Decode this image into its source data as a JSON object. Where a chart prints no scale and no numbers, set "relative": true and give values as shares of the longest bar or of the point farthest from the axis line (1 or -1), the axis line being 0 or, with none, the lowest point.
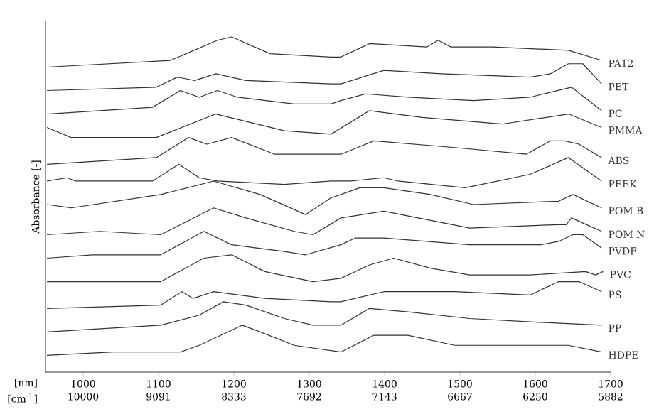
{
  "chart_data": {
    "type": "line",
    "relative": true,
    "marker": "none",
    "xlabel": "[nm]",
    "annotations": [
      "[cm$^{-1}$]",
      "10000",
      "9091",
      "8333",
      "7692",
      "7143",
      "6667",
      "6250",
      "5882"
    ],
    "ylabel": "Absorbance [-]",
    "xlim": [
      950,
      1700
    ],
    "xticks": [
      1000,
      1100,
      1200,
      1300,
      1400,
      1500,
      1600,
      1700
    ],
    "series": [
      {
        "name": "PA12",
        "color": "#333333",
        "x": [
          952,
          1116,
          1178,
          1197,
          1248,
          1329,
          1342,
          1380,
          1456,
          1471,
          1488,
          1544,
          1644,
          1688
        ],
        "values": [
          0.91,
          0.93,
          0.99,
          1.0,
          0.95,
          0.94,
          0.94,
          0.98,
          0.97,
          0.99,
          0.97,
          0.97,
          0.96,
          0.93
        ]
      },
      {
        "name": "PET",
        "color": "#333333",
        "x": [
          952,
          1097,
          1125,
          1148,
          1176,
          1216,
          1329,
          1342,
          1399,
          1475,
          1593,
          1620,
          1644,
          1663,
          1688
        ],
        "values": [
          0.84,
          0.85,
          0.88,
          0.87,
          0.89,
          0.87,
          0.86,
          0.86,
          0.9,
          0.89,
          0.88,
          0.89,
          0.92,
          0.92,
          0.86
        ]
      },
      {
        "name": "PC",
        "color": "#333333",
        "x": [
          952,
          1092,
          1129,
          1154,
          1178,
          1205,
          1280,
          1329,
          1342,
          1375,
          1431,
          1518,
          1593,
          1648,
          1688
        ],
        "values": [
          0.77,
          0.79,
          0.84,
          0.82,
          0.84,
          0.82,
          0.8,
          0.8,
          0.81,
          0.83,
          0.82,
          0.81,
          0.82,
          0.85,
          0.78
        ]
      },
      {
        "name": "PMMA",
        "color": "#333333",
        "x": [
          952,
          984,
          1097,
          1176,
          1267,
          1329,
          1380,
          1450,
          1556,
          1644,
          1688
        ],
        "values": [
          0.73,
          0.7,
          0.7,
          0.77,
          0.72,
          0.71,
          0.78,
          0.76,
          0.74,
          0.77,
          0.73
        ]
      },
      {
        "name": "ABS",
        "color": "#333333",
        "x": [
          952,
          1097,
          1140,
          1164,
          1197,
          1254,
          1329,
          1342,
          1386,
          1493,
          1588,
          1620,
          1639,
          1658,
          1688
        ],
        "values": [
          0.62,
          0.64,
          0.7,
          0.68,
          0.7,
          0.65,
          0.65,
          0.65,
          0.69,
          0.67,
          0.65,
          0.69,
          0.69,
          0.68,
          0.64
        ]
      },
      {
        "name": "PEEK",
        "color": "#333333",
        "x": [
          952,
          979,
          990,
          1092,
          1127,
          1154,
          1178,
          1267,
          1329,
          1355,
          1399,
          1418,
          1507,
          1593,
          1644,
          1688
        ],
        "values": [
          0.57,
          0.58,
          0.57,
          0.57,
          0.62,
          0.58,
          0.57,
          0.56,
          0.57,
          0.57,
          0.58,
          0.57,
          0.55,
          0.59,
          0.64,
          0.57
        ]
      },
      {
        "name": "POM B",
        "color": "#333333",
        "x": [
          952,
          984,
          1103,
          1173,
          1235,
          1295,
          1329,
          1342,
          1367,
          1399,
          1461,
          1518,
          1631,
          1650,
          1688
        ],
        "values": [
          0.5,
          0.49,
          0.53,
          0.57,
          0.53,
          0.47,
          0.52,
          0.53,
          0.55,
          0.55,
          0.53,
          0.5,
          0.51,
          0.53,
          0.49
        ]
      },
      {
        "name": "POM N",
        "color": "#333333",
        "x": [
          952,
          1022,
          1103,
          1173,
          1216,
          1280,
          1305,
          1342,
          1399,
          1513,
          1631,
          1641,
          1648,
          1658,
          1688
        ],
        "values": [
          0.41,
          0.42,
          0.41,
          0.49,
          0.46,
          0.42,
          0.41,
          0.46,
          0.48,
          0.43,
          0.44,
          0.44,
          0.46,
          0.45,
          0.42
        ]
      },
      {
        "name": "PVDF",
        "color": "#333333",
        "x": [
          952,
          1012,
          1103,
          1160,
          1197,
          1267,
          1295,
          1342,
          1361,
          1399,
          1513,
          1607,
          1631,
          1650,
          1663,
          1688
        ],
        "values": [
          0.34,
          0.35,
          0.35,
          0.42,
          0.38,
          0.36,
          0.35,
          0.38,
          0.4,
          0.4,
          0.38,
          0.38,
          0.39,
          0.41,
          0.41,
          0.37
        ]
      },
      {
        "name": "PVC",
        "color": "#333333",
        "x": [
          952,
          1103,
          1160,
          1197,
          1241,
          1305,
          1342,
          1380,
          1412,
          1461,
          1513,
          1593,
          1667,
          1680,
          1690
        ],
        "values": [
          0.27,
          0.27,
          0.34,
          0.35,
          0.3,
          0.27,
          0.28,
          0.32,
          0.34,
          0.31,
          0.29,
          0.29,
          0.3,
          0.29,
          0.3
        ]
      },
      {
        "name": "PS",
        "color": "#333333",
        "x": [
          952,
          1103,
          1131,
          1146,
          1173,
          1241,
          1329,
          1342,
          1399,
          1493,
          1593,
          1631,
          1644,
          1658,
          1688
        ],
        "values": [
          0.19,
          0.2,
          0.24,
          0.22,
          0.24,
          0.22,
          0.21,
          0.21,
          0.24,
          0.24,
          0.23,
          0.27,
          0.27,
          0.27,
          0.24
        ]
      },
      {
        "name": "PP",
        "color": "#333333",
        "x": [
          952,
          1103,
          1154,
          1186,
          1216,
          1267,
          1305,
          1342,
          1380,
          1431,
          1513,
          1593,
          1688
        ],
        "values": [
          0.12,
          0.14,
          0.17,
          0.21,
          0.2,
          0.16,
          0.14,
          0.14,
          0.19,
          0.18,
          0.16,
          0.15,
          0.14
        ]
      },
      {
        "name": "HDPE",
        "color": "#333333",
        "x": [
          952,
          1040,
          1129,
          1154,
          1211,
          1235,
          1280,
          1342,
          1386,
          1431,
          1493,
          1593,
          1644,
          1688
        ],
        "values": [
          0.05,
          0.06,
          0.06,
          0.08,
          0.14,
          0.12,
          0.08,
          0.06,
          0.11,
          0.11,
          0.08,
          0.08,
          0.08,
          0.06
        ]
      }
    ]
  }
}
